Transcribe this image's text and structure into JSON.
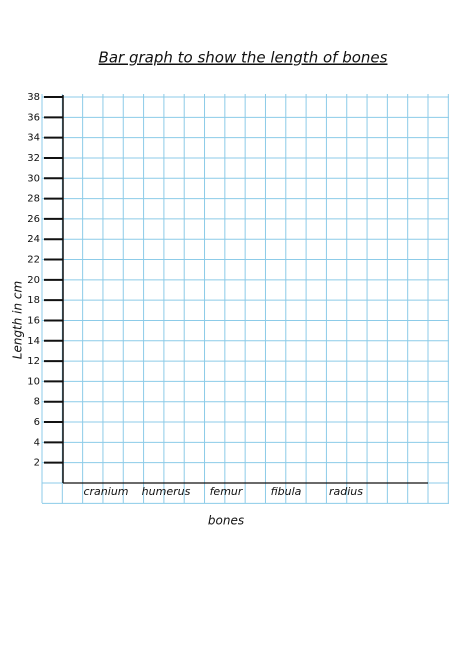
{
  "chart_data": {
    "type": "bar",
    "title": "Bar graph to show the length of bones",
    "x_label": "bones",
    "y_label": "Length in cm",
    "categories": [
      "cranium",
      "humerus",
      "femur",
      "fibula",
      "radius"
    ],
    "ylim": [
      0,
      38
    ],
    "yticks": [
      2,
      4,
      6,
      8,
      10,
      12,
      14,
      16,
      18,
      20,
      22,
      24,
      26,
      28,
      30,
      32,
      34,
      36,
      38
    ],
    "grid": true
  }
}
